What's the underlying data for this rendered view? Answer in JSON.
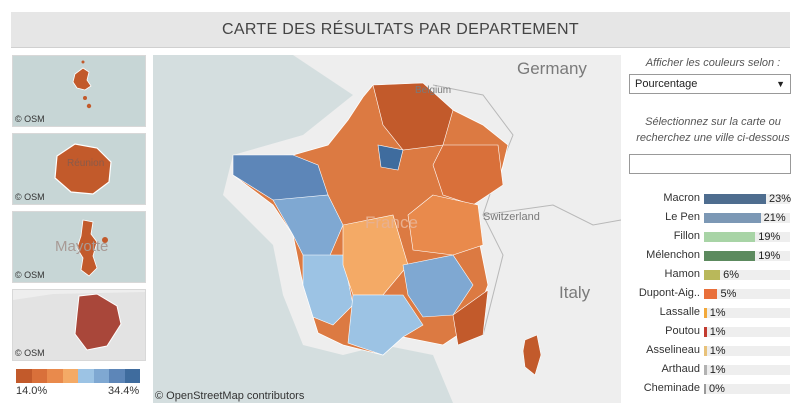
{
  "title": "CARTE DES RÉSULTATS PAR DEPARTEMENT",
  "osm_label": "© OSM",
  "map_credit": "© OpenStreetMap contributors",
  "insets": {
    "reunion_label": "Réunion",
    "mayotte_label": "Mayotte"
  },
  "labels": {
    "germany": "Germany",
    "belgium": "Belgium",
    "switzerland": "Switzerland",
    "italy": "Italy",
    "france": "France"
  },
  "legend": {
    "min": "14.0%",
    "max": "34.4%",
    "colors": [
      "#c25a2b",
      "#d9703a",
      "#e98a4c",
      "#f4aa66",
      "#9cc3e4",
      "#7fa8d2",
      "#5d86b8",
      "#3f6c9e"
    ]
  },
  "controls": {
    "color_by_label": "Afficher les couleurs selon :",
    "color_by_value": "Pourcentage",
    "search_label_line1": "Sélectionnez sur la carte ou",
    "search_label_line2": "recherchez une ville ci-dessous",
    "search_value": ""
  },
  "candidates": [
    {
      "name": "Macron",
      "pct_label": "23%",
      "value": 23,
      "color": "#4e6d8f"
    },
    {
      "name": "Le Pen",
      "pct_label": "21%",
      "value": 21,
      "color": "#7c98b5"
    },
    {
      "name": "Fillon",
      "pct_label": "19%",
      "value": 19,
      "color": "#a8d4a6"
    },
    {
      "name": "Mélenchon",
      "pct_label": "19%",
      "value": 19,
      "color": "#5c8a5e"
    },
    {
      "name": "Hamon",
      "pct_label": "6%",
      "value": 6,
      "color": "#b9b85a"
    },
    {
      "name": "Dupont-Aig..",
      "pct_label": "5%",
      "value": 5,
      "color": "#e96f3a"
    },
    {
      "name": "Lassalle",
      "pct_label": "1%",
      "value": 1,
      "color": "#f2a93b"
    },
    {
      "name": "Poutou",
      "pct_label": "1%",
      "value": 1,
      "color": "#c23b30"
    },
    {
      "name": "Asselineau",
      "pct_label": "1%",
      "value": 1,
      "color": "#e8c27a"
    },
    {
      "name": "Arthaud",
      "pct_label": "1%",
      "value": 1,
      "color": "#b2b2b2"
    },
    {
      "name": "Cheminade",
      "pct_label": "0%",
      "value": 0,
      "color": "#9a9a9a"
    }
  ]
}
